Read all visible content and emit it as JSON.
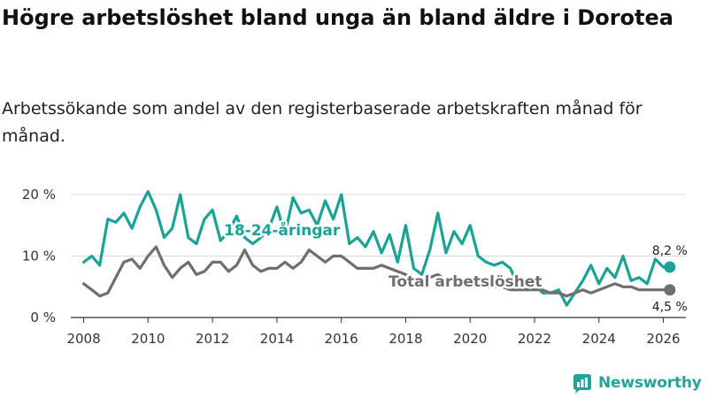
{
  "title": "Högre arbetslöshet bland unga än bland äldre i Dorotea",
  "subtitle": "Arbetssökande som andel av den registerbaserade arbetskraften månad för månad.",
  "brand": "Newsworthy",
  "colors": {
    "youth": "#1aa395",
    "total": "#6f6f6f"
  },
  "chart_data": {
    "type": "line",
    "title": "Högre arbetslöshet bland unga än bland äldre i Dorotea",
    "xlabel": "",
    "ylabel": "",
    "xlim": [
      2007.6,
      2026.7
    ],
    "ylim": [
      0,
      20
    ],
    "yticks": [
      0,
      10,
      20
    ],
    "ytick_labels": [
      "0 %",
      "10 %",
      "20 %"
    ],
    "xticks": [
      2008,
      2010,
      2012,
      2014,
      2016,
      2018,
      2020,
      2022,
      2024,
      2026
    ],
    "xtick_labels": [
      "2008",
      "2010",
      "2012",
      "2014",
      "2016",
      "2018",
      "2020",
      "2022",
      "2024",
      "2026"
    ],
    "grid": true,
    "series": [
      {
        "name": "18-24-åringar",
        "label": "18-24-åringar",
        "color": "#1aa395",
        "x": [
          2008.0,
          2008.25,
          2008.5,
          2008.75,
          2009.0,
          2009.25,
          2009.5,
          2009.75,
          2010.0,
          2010.25,
          2010.5,
          2010.75,
          2011.0,
          2011.25,
          2011.5,
          2011.75,
          2012.0,
          2012.25,
          2012.5,
          2012.75,
          2013.0,
          2013.25,
          2013.5,
          2013.75,
          2014.0,
          2014.25,
          2014.5,
          2014.75,
          2015.0,
          2015.25,
          2015.5,
          2015.75,
          2016.0,
          2016.25,
          2016.5,
          2016.75,
          2017.0,
          2017.25,
          2017.5,
          2017.75,
          2018.0,
          2018.25,
          2018.5,
          2018.75,
          2019.0,
          2019.25,
          2019.5,
          2019.75,
          2020.0,
          2020.25,
          2020.5,
          2020.75,
          2021.0,
          2021.25,
          2021.5,
          2021.75,
          2022.0,
          2022.25,
          2022.5,
          2022.75,
          2023.0,
          2023.25,
          2023.5,
          2023.75,
          2024.0,
          2024.25,
          2024.5,
          2024.75,
          2025.0,
          2025.25,
          2025.5,
          2025.75,
          2026.0,
          2026.2
        ],
        "y": [
          9,
          10,
          8.5,
          16,
          15.5,
          17,
          14.5,
          18,
          20.5,
          17.5,
          13,
          14.5,
          20,
          13,
          12,
          16,
          17.5,
          12.5,
          14,
          16.5,
          13,
          12,
          13,
          14.5,
          18,
          13.5,
          19.5,
          17,
          17.5,
          15,
          19,
          16,
          20,
          12,
          13,
          11.5,
          14,
          10.5,
          13.5,
          9,
          15,
          8,
          7,
          11,
          17,
          10.5,
          14,
          12,
          15,
          10,
          9,
          8.5,
          9,
          8,
          5,
          4.5,
          5.5,
          4,
          4,
          4.5,
          2,
          4,
          6,
          8.5,
          5.5,
          8,
          6.5,
          10,
          6,
          6.5,
          5.5,
          9.5,
          8.2,
          8.2
        ]
      },
      {
        "name": "Total arbetslöshet",
        "label": "Total arbetslöshet",
        "color": "#6f6f6f",
        "x": [
          2008.0,
          2008.25,
          2008.5,
          2008.75,
          2009.0,
          2009.25,
          2009.5,
          2009.75,
          2010.0,
          2010.25,
          2010.5,
          2010.75,
          2011.0,
          2011.25,
          2011.5,
          2011.75,
          2012.0,
          2012.25,
          2012.5,
          2012.75,
          2013.0,
          2013.25,
          2013.5,
          2013.75,
          2014.0,
          2014.25,
          2014.5,
          2014.75,
          2015.0,
          2015.25,
          2015.5,
          2015.75,
          2016.0,
          2016.25,
          2016.5,
          2016.75,
          2017.0,
          2017.25,
          2017.5,
          2017.75,
          2018.0,
          2018.25,
          2018.5,
          2018.75,
          2019.0,
          2019.25,
          2019.5,
          2019.75,
          2020.0,
          2020.25,
          2020.5,
          2020.75,
          2021.0,
          2021.25,
          2021.5,
          2021.75,
          2022.0,
          2022.25,
          2022.5,
          2022.75,
          2023.0,
          2023.25,
          2023.5,
          2023.75,
          2024.0,
          2024.25,
          2024.5,
          2024.75,
          2025.0,
          2025.25,
          2025.5,
          2025.75,
          2026.0,
          2026.2
        ],
        "y": [
          5.5,
          4.5,
          3.5,
          4,
          6.5,
          9,
          9.5,
          8,
          10,
          11.5,
          8.5,
          6.5,
          8,
          9,
          7,
          7.5,
          9,
          9,
          7.5,
          8.5,
          11,
          8.5,
          7.5,
          8,
          8,
          9,
          8,
          9,
          11,
          10,
          9,
          10,
          10,
          9,
          8,
          8,
          8,
          8.5,
          8,
          7.5,
          7,
          6.5,
          6,
          6.5,
          7,
          6,
          6.5,
          5.5,
          6,
          5.5,
          5,
          5,
          5,
          4.5,
          4.5,
          4.5,
          4.5,
          4.5,
          4,
          4,
          3.5,
          4,
          4.5,
          4,
          4.5,
          5,
          5.5,
          5,
          5,
          4.5,
          4.5,
          4.5,
          4.5,
          4.5
        ]
      }
    ],
    "end_labels": [
      "8,2 %",
      "4,5 %"
    ]
  }
}
